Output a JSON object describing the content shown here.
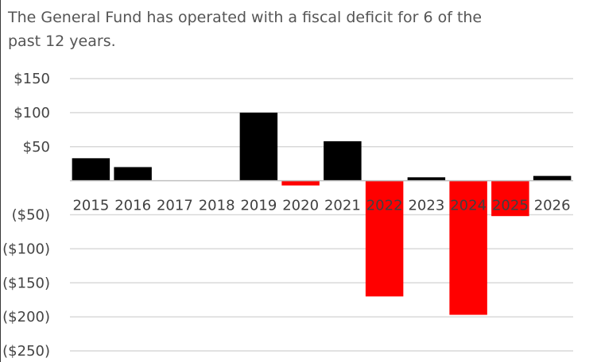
{
  "chart_data": {
    "type": "bar",
    "title": "The General Fund has operated with a fiscal deficit for 6 of the past 12 years.",
    "xlabel": "",
    "ylabel": "",
    "categories": [
      "2015",
      "2016",
      "2017",
      "2018",
      "2019",
      "2020",
      "2021",
      "2022",
      "2023",
      "2024",
      "2025",
      "2026"
    ],
    "values": [
      33,
      20,
      0,
      0,
      100,
      -7,
      58,
      -170,
      5,
      -197,
      -52,
      7
    ],
    "ylim": [
      -250,
      150
    ],
    "yticks": [
      150,
      100,
      50,
      0,
      -50,
      -100,
      -150,
      -200,
      -250
    ],
    "ytick_labels": [
      "$150",
      "$100",
      "$50",
      "",
      "($50)",
      "($100)",
      "($150)",
      "($200)",
      "($250)"
    ],
    "grid": true,
    "legend": "none",
    "colors": {
      "positive": "#000000",
      "negative": "#ff0000",
      "grid": "#d9d9d9",
      "axis": "#bfbfbf"
    }
  }
}
